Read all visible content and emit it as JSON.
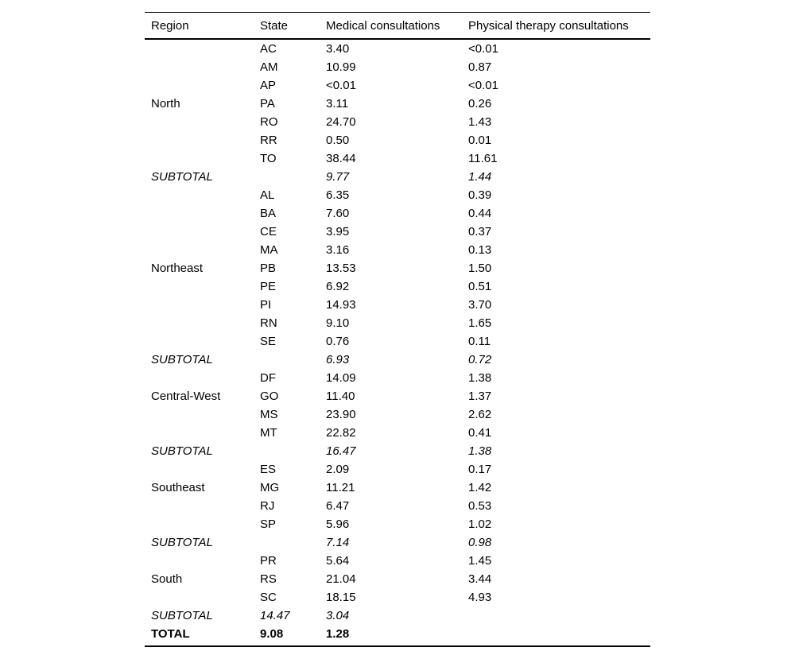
{
  "table": {
    "columns": {
      "region": "Region",
      "state": "State",
      "medical": "Medical consultations",
      "physical": "Physical therapy consultations"
    },
    "rows": [
      {
        "region": "",
        "state": "AC",
        "medical": "3.40",
        "physical": "<0.01",
        "style": "normal"
      },
      {
        "region": "",
        "state": "AM",
        "medical": "10.99",
        "physical": "0.87",
        "style": "normal"
      },
      {
        "region": "",
        "state": "AP",
        "medical": "<0.01",
        "physical": "<0.01",
        "style": "normal"
      },
      {
        "region": "North",
        "state": "PA",
        "medical": "3.11",
        "physical": "0.26",
        "style": "normal"
      },
      {
        "region": "",
        "state": "RO",
        "medical": "24.70",
        "physical": "1.43",
        "style": "normal"
      },
      {
        "region": "",
        "state": "RR",
        "medical": "0.50",
        "physical": "0.01",
        "style": "normal"
      },
      {
        "region": "",
        "state": "TO",
        "medical": "38.44",
        "physical": "11.61",
        "style": "normal"
      },
      {
        "region": "SUBTOTAL",
        "state": "",
        "medical": "9.77",
        "physical": "1.44",
        "style": "subtotal"
      },
      {
        "region": "",
        "state": "AL",
        "medical": "6.35",
        "physical": "0.39",
        "style": "normal"
      },
      {
        "region": "",
        "state": "BA",
        "medical": "7.60",
        "physical": "0.44",
        "style": "normal"
      },
      {
        "region": "",
        "state": "CE",
        "medical": "3.95",
        "physical": "0.37",
        "style": "normal"
      },
      {
        "region": "",
        "state": "MA",
        "medical": "3.16",
        "physical": "0.13",
        "style": "normal"
      },
      {
        "region": "Northeast",
        "state": "PB",
        "medical": "13.53",
        "physical": "1.50",
        "style": "normal"
      },
      {
        "region": "",
        "state": "PE",
        "medical": "6.92",
        "physical": "0.51",
        "style": "normal"
      },
      {
        "region": "",
        "state": "PI",
        "medical": "14.93",
        "physical": "3.70",
        "style": "normal"
      },
      {
        "region": "",
        "state": "RN",
        "medical": "9.10",
        "physical": "1.65",
        "style": "normal"
      },
      {
        "region": "",
        "state": "SE",
        "medical": "0.76",
        "physical": "0.11",
        "style": "normal"
      },
      {
        "region": "SUBTOTAL",
        "state": "",
        "medical": "6.93",
        "physical": "0.72",
        "style": "subtotal"
      },
      {
        "region": "",
        "state": "DF",
        "medical": "14.09",
        "physical": "1.38",
        "style": "normal"
      },
      {
        "region": "Central-West",
        "state": "GO",
        "medical": "11.40",
        "physical": "1.37",
        "style": "normal"
      },
      {
        "region": "",
        "state": "MS",
        "medical": "23.90",
        "physical": "2.62",
        "style": "normal"
      },
      {
        "region": "",
        "state": "MT",
        "medical": "22.82",
        "physical": "0.41",
        "style": "normal"
      },
      {
        "region": "SUBTOTAL",
        "state": "",
        "medical": "16.47",
        "physical": "1.38",
        "style": "subtotal"
      },
      {
        "region": "",
        "state": "ES",
        "medical": "2.09",
        "physical": "0.17",
        "style": "normal"
      },
      {
        "region": "Southeast",
        "state": "MG",
        "medical": "11.21",
        "physical": "1.42",
        "style": "normal"
      },
      {
        "region": "",
        "state": "RJ",
        "medical": "6.47",
        "physical": "0.53",
        "style": "normal"
      },
      {
        "region": "",
        "state": "SP",
        "medical": "5.96",
        "physical": "1.02",
        "style": "normal"
      },
      {
        "region": "SUBTOTAL",
        "state": "",
        "medical": "7.14",
        "physical": "0.98",
        "style": "subtotal"
      },
      {
        "region": "",
        "state": "PR",
        "medical": "5.64",
        "physical": "1.45",
        "style": "normal"
      },
      {
        "region": "South",
        "state": "RS",
        "medical": "21.04",
        "physical": "3.44",
        "style": "normal"
      },
      {
        "region": "",
        "state": "SC",
        "medical": "18.15",
        "physical": "4.93",
        "style": "normal"
      },
      {
        "region": "SUBTOTAL",
        "state": "14.47",
        "medical": "3.04",
        "physical": "",
        "style": "subtotal"
      },
      {
        "region": "TOTAL",
        "state": "9.08",
        "medical": "1.28",
        "physical": "",
        "style": "total"
      }
    ]
  }
}
